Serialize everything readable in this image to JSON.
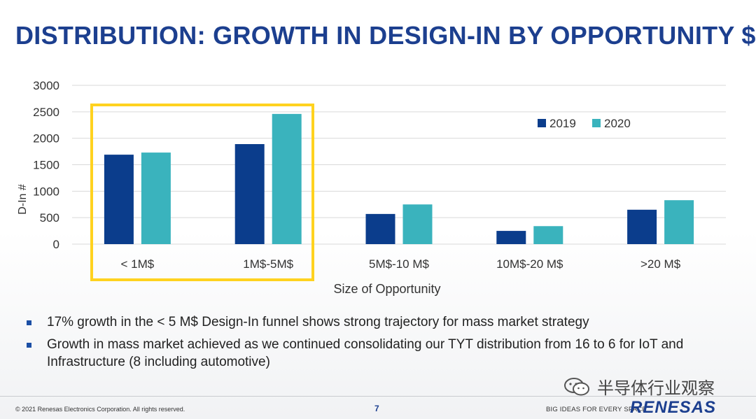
{
  "slide": {
    "title": "DISTRIBUTION: GROWTH IN DESIGN-IN BY OPPORTUNITY $",
    "bullets": [
      "17% growth in the < 5 M$ Design-In funnel shows strong trajectory for mass market strategy",
      "Growth in mass market achieved as we continued consolidating our TYT distribution from 16 to 6 for IoT and Infrastructure (8 including automotive)"
    ],
    "watermark": "半导体行业观察",
    "copyright": "© 2021 Renesas Electronics Corporation. All rights reserved.",
    "page_number": "7",
    "tagline": "BIG IDEAS FOR EVERY SPACE",
    "logo": "RENESAS"
  },
  "colors": {
    "title": "#1c3f8f",
    "series_2019": "#0b3d8c",
    "series_2020": "#3ab3bd",
    "highlight": "#ffd21f"
  },
  "chart_data": {
    "type": "bar",
    "categories": [
      "< 1M$",
      "1M$-5M$",
      "5M$-10 M$",
      "10M$-20 M$",
      ">20 M$"
    ],
    "series": [
      {
        "name": "2019",
        "values": [
          1690,
          1890,
          570,
          250,
          650
        ]
      },
      {
        "name": "2020",
        "values": [
          1730,
          2460,
          750,
          340,
          830
        ]
      }
    ],
    "xlabel": "Size of Opportunity",
    "ylabel": "D-In #",
    "ylim": [
      0,
      3000
    ],
    "yticks": [
      0,
      500,
      1000,
      1500,
      2000,
      2500,
      3000
    ],
    "grid": true,
    "legend_position": "top-right",
    "highlighted_categories": [
      "< 1M$",
      "1M$-5M$"
    ]
  }
}
